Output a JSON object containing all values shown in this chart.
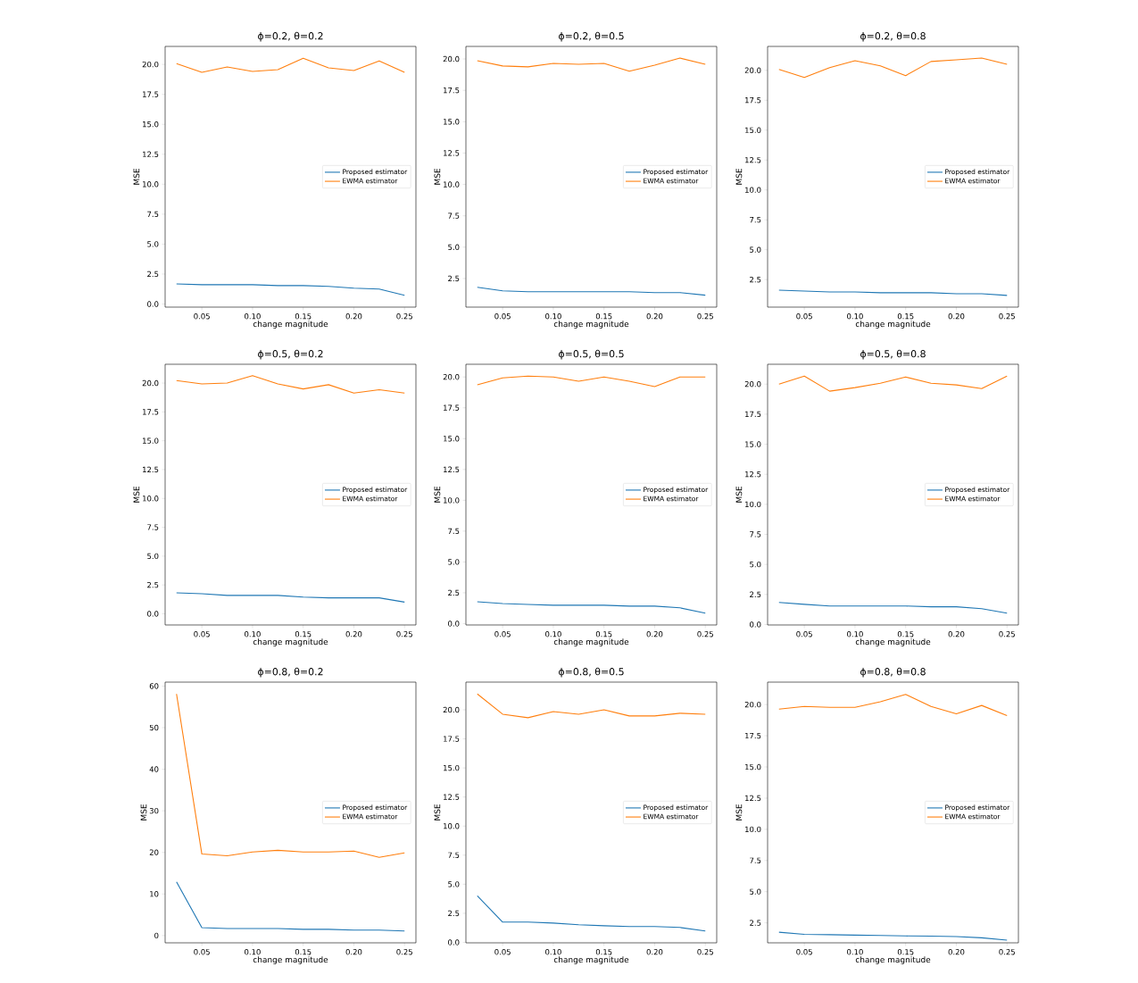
{
  "chart_data": [
    {
      "type": "line",
      "title": "ϕ=0.2, θ=0.2",
      "xlabel": "change magnitude",
      "ylabel": "MSE",
      "legend": "right",
      "x": [
        0.025,
        0.05,
        0.075,
        0.1,
        0.125,
        0.15,
        0.175,
        0.2,
        0.225,
        0.25
      ],
      "series": [
        {
          "name": "Proposed estimator",
          "color": "#1f77b4",
          "values": [
            1.68,
            1.61,
            1.61,
            1.61,
            1.54,
            1.54,
            1.47,
            1.32,
            1.25,
            0.73
          ]
        },
        {
          "name": "EWMA estimator",
          "color": "#ff7f0e",
          "values": [
            20.07,
            19.34,
            19.78,
            19.41,
            19.56,
            20.51,
            19.71,
            19.49,
            20.29,
            19.34
          ]
        }
      ],
      "xlim": [
        0.01375,
        0.26125
      ],
      "ylim": [
        -0.26,
        21.5
      ],
      "xticks": [
        {
          "value": 0.05,
          "label": "0.05"
        },
        {
          "value": 0.1,
          "label": "0.10"
        },
        {
          "value": 0.15,
          "label": "0.15"
        },
        {
          "value": 0.2,
          "label": "0.20"
        },
        {
          "value": 0.25,
          "label": "0.25"
        }
      ],
      "yticks": [
        {
          "value": 0,
          "label": "0.0"
        },
        {
          "value": 2.5,
          "label": "2.5"
        },
        {
          "value": 5,
          "label": "5.0"
        },
        {
          "value": 7.5,
          "label": "7.5"
        },
        {
          "value": 10,
          "label": "10.0"
        },
        {
          "value": 12.5,
          "label": "12.5"
        },
        {
          "value": 15,
          "label": "15.0"
        },
        {
          "value": 17.5,
          "label": "17.5"
        },
        {
          "value": 20,
          "label": "20.0"
        }
      ]
    },
    {
      "type": "line",
      "title": "ϕ=0.2, θ=0.5",
      "xlabel": "change magnitude",
      "ylabel": "MSE",
      "legend": "right",
      "x": [
        0.025,
        0.05,
        0.075,
        0.1,
        0.125,
        0.15,
        0.175,
        0.2,
        0.225,
        0.25
      ],
      "series": [
        {
          "name": "Proposed estimator",
          "color": "#1f77b4",
          "values": [
            1.8,
            1.52,
            1.45,
            1.45,
            1.45,
            1.45,
            1.45,
            1.38,
            1.38,
            1.17
          ]
        },
        {
          "name": "EWMA estimator",
          "color": "#ff7f0e",
          "values": [
            19.86,
            19.44,
            19.37,
            19.65,
            19.58,
            19.65,
            19.02,
            19.51,
            20.07,
            19.58
          ]
        }
      ],
      "xlim": [
        0.01375,
        0.26125
      ],
      "ylim": [
        0.22,
        21.0
      ],
      "xticks": [
        {
          "value": 0.05,
          "label": "0.05"
        },
        {
          "value": 0.1,
          "label": "0.10"
        },
        {
          "value": 0.15,
          "label": "0.15"
        },
        {
          "value": 0.2,
          "label": "0.20"
        },
        {
          "value": 0.25,
          "label": "0.25"
        }
      ],
      "yticks": [
        {
          "value": 2.5,
          "label": "2.5"
        },
        {
          "value": 5,
          "label": "5.0"
        },
        {
          "value": 7.5,
          "label": "7.5"
        },
        {
          "value": 10,
          "label": "10.0"
        },
        {
          "value": 12.5,
          "label": "12.5"
        },
        {
          "value": 15,
          "label": "15.0"
        },
        {
          "value": 17.5,
          "label": "17.5"
        },
        {
          "value": 20,
          "label": "20.0"
        }
      ]
    },
    {
      "type": "line",
      "title": "ϕ=0.2, θ=0.8",
      "xlabel": "change magnitude",
      "ylabel": "MSE",
      "legend": "right",
      "x": [
        0.025,
        0.05,
        0.075,
        0.1,
        0.125,
        0.15,
        0.175,
        0.2,
        0.225,
        0.25
      ],
      "series": [
        {
          "name": "Proposed estimator",
          "color": "#1f77b4",
          "values": [
            1.62,
            1.54,
            1.47,
            1.47,
            1.4,
            1.4,
            1.4,
            1.32,
            1.32,
            1.18
          ]
        },
        {
          "name": "EWMA estimator",
          "color": "#ff7f0e",
          "values": [
            20.07,
            19.41,
            20.22,
            20.81,
            20.37,
            19.56,
            20.74,
            20.88,
            21.03,
            20.51
          ]
        }
      ],
      "xlim": [
        0.01375,
        0.26125
      ],
      "ylim": [
        0.2,
        22.0
      ],
      "xticks": [
        {
          "value": 0.05,
          "label": "0.05"
        },
        {
          "value": 0.1,
          "label": "0.10"
        },
        {
          "value": 0.15,
          "label": "0.15"
        },
        {
          "value": 0.2,
          "label": "0.20"
        },
        {
          "value": 0.25,
          "label": "0.25"
        }
      ],
      "yticks": [
        {
          "value": 2.5,
          "label": "2.5"
        },
        {
          "value": 5,
          "label": "5.0"
        },
        {
          "value": 7.5,
          "label": "7.5"
        },
        {
          "value": 10,
          "label": "10.0"
        },
        {
          "value": 12.5,
          "label": "12.5"
        },
        {
          "value": 15,
          "label": "15.0"
        },
        {
          "value": 17.5,
          "label": "17.5"
        },
        {
          "value": 20,
          "label": "20.0"
        }
      ]
    },
    {
      "type": "line",
      "title": "ϕ=0.5, θ=0.2",
      "xlabel": "change magnitude",
      "ylabel": "MSE",
      "legend": "right",
      "x": [
        0.025,
        0.05,
        0.075,
        0.1,
        0.125,
        0.15,
        0.175,
        0.2,
        0.225,
        0.25
      ],
      "series": [
        {
          "name": "Proposed estimator",
          "color": "#1f77b4",
          "values": [
            1.81,
            1.74,
            1.59,
            1.59,
            1.59,
            1.45,
            1.38,
            1.38,
            1.38,
            1.01
          ]
        },
        {
          "name": "EWMA estimator",
          "color": "#ff7f0e",
          "values": [
            20.22,
            19.93,
            20.0,
            20.65,
            19.93,
            19.49,
            19.86,
            19.13,
            19.42,
            19.13
          ]
        }
      ],
      "xlim": [
        0.01375,
        0.26125
      ],
      "ylim": [
        -0.97,
        21.63
      ],
      "xticks": [
        {
          "value": 0.05,
          "label": "0.05"
        },
        {
          "value": 0.1,
          "label": "0.10"
        },
        {
          "value": 0.15,
          "label": "0.15"
        },
        {
          "value": 0.2,
          "label": "0.20"
        },
        {
          "value": 0.25,
          "label": "0.25"
        }
      ],
      "yticks": [
        {
          "value": 0,
          "label": "0.0"
        },
        {
          "value": 2.5,
          "label": "2.5"
        },
        {
          "value": 5,
          "label": "5.0"
        },
        {
          "value": 7.5,
          "label": "7.5"
        },
        {
          "value": 10,
          "label": "10.0"
        },
        {
          "value": 12.5,
          "label": "12.5"
        },
        {
          "value": 15,
          "label": "15.0"
        },
        {
          "value": 17.5,
          "label": "17.5"
        },
        {
          "value": 20,
          "label": "20.0"
        }
      ]
    },
    {
      "type": "line",
      "title": "ϕ=0.5, θ=0.5",
      "xlabel": "change magnitude",
      "ylabel": "MSE",
      "legend": "right",
      "x": [
        0.025,
        0.05,
        0.075,
        0.1,
        0.125,
        0.15,
        0.175,
        0.2,
        0.225,
        0.25
      ],
      "series": [
        {
          "name": "Proposed estimator",
          "color": "#1f77b4",
          "values": [
            1.77,
            1.63,
            1.56,
            1.49,
            1.49,
            1.49,
            1.42,
            1.42,
            1.28,
            0.85
          ]
        },
        {
          "name": "EWMA estimator",
          "color": "#ff7f0e",
          "values": [
            19.36,
            19.93,
            20.07,
            20.0,
            19.65,
            20.0,
            19.65,
            19.22,
            20.0,
            20.0
          ]
        }
      ],
      "xlim": [
        0.01375,
        0.26125
      ],
      "ylim": [
        -0.11,
        21.03
      ],
      "xticks": [
        {
          "value": 0.05,
          "label": "0.05"
        },
        {
          "value": 0.1,
          "label": "0.10"
        },
        {
          "value": 0.15,
          "label": "0.15"
        },
        {
          "value": 0.2,
          "label": "0.20"
        },
        {
          "value": 0.25,
          "label": "0.25"
        }
      ],
      "yticks": [
        {
          "value": 0,
          "label": "0.0"
        },
        {
          "value": 2.5,
          "label": "2.5"
        },
        {
          "value": 5,
          "label": "5.0"
        },
        {
          "value": 7.5,
          "label": "7.5"
        },
        {
          "value": 10,
          "label": "10.0"
        },
        {
          "value": 12.5,
          "label": "12.5"
        },
        {
          "value": 15,
          "label": "15.0"
        },
        {
          "value": 17.5,
          "label": "17.5"
        },
        {
          "value": 20,
          "label": "20.0"
        }
      ]
    },
    {
      "type": "line",
      "title": "ϕ=0.5, θ=0.8",
      "xlabel": "change magnitude",
      "ylabel": "MSE",
      "legend": "right",
      "x": [
        0.025,
        0.05,
        0.075,
        0.1,
        0.125,
        0.15,
        0.175,
        0.2,
        0.225,
        0.25
      ],
      "series": [
        {
          "name": "Proposed estimator",
          "color": "#1f77b4",
          "values": [
            1.83,
            1.68,
            1.54,
            1.54,
            1.54,
            1.54,
            1.47,
            1.47,
            1.32,
            0.95
          ]
        },
        {
          "name": "EWMA estimator",
          "color": "#ff7f0e",
          "values": [
            20.0,
            20.66,
            19.41,
            19.71,
            20.07,
            20.59,
            20.07,
            19.93,
            19.63,
            20.66
          ]
        }
      ],
      "xlim": [
        0.01375,
        0.26125
      ],
      "ylim": [
        -0.04,
        21.65
      ],
      "xticks": [
        {
          "value": 0.05,
          "label": "0.05"
        },
        {
          "value": 0.1,
          "label": "0.10"
        },
        {
          "value": 0.15,
          "label": "0.15"
        },
        {
          "value": 0.2,
          "label": "0.20"
        },
        {
          "value": 0.25,
          "label": "0.25"
        }
      ],
      "yticks": [
        {
          "value": 0,
          "label": "0.0"
        },
        {
          "value": 2.5,
          "label": "2.5"
        },
        {
          "value": 5,
          "label": "5.0"
        },
        {
          "value": 7.5,
          "label": "7.5"
        },
        {
          "value": 10,
          "label": "10.0"
        },
        {
          "value": 12.5,
          "label": "12.5"
        },
        {
          "value": 15,
          "label": "15.0"
        },
        {
          "value": 17.5,
          "label": "17.5"
        },
        {
          "value": 20,
          "label": "20.0"
        }
      ]
    },
    {
      "type": "line",
      "title": "ϕ=0.8, θ=0.2",
      "xlabel": "change magnitude",
      "ylabel": "MSE",
      "legend": "right",
      "x": [
        0.025,
        0.05,
        0.075,
        0.1,
        0.125,
        0.15,
        0.175,
        0.2,
        0.225,
        0.25
      ],
      "series": [
        {
          "name": "Proposed estimator",
          "color": "#1f77b4",
          "values": [
            12.9,
            1.9,
            1.7,
            1.7,
            1.7,
            1.5,
            1.5,
            1.3,
            1.3,
            1.1
          ]
        },
        {
          "name": "EWMA estimator",
          "color": "#ff7f0e",
          "values": [
            58.1,
            19.6,
            19.2,
            20.1,
            20.5,
            20.1,
            20.1,
            20.3,
            18.8,
            19.9
          ]
        }
      ],
      "xlim": [
        0.01375,
        0.26125
      ],
      "ylim": [
        -1.75,
        60.95
      ],
      "xticks": [
        {
          "value": 0.05,
          "label": "0.05"
        },
        {
          "value": 0.1,
          "label": "0.10"
        },
        {
          "value": 0.15,
          "label": "0.15"
        },
        {
          "value": 0.2,
          "label": "0.20"
        },
        {
          "value": 0.25,
          "label": "0.25"
        }
      ],
      "yticks": [
        0,
        10,
        20,
        30,
        40,
        50,
        60
      ]
    },
    {
      "type": "line",
      "title": "ϕ=0.8, θ=0.5",
      "xlabel": "change magnitude",
      "ylabel": "MSE",
      "legend": "right",
      "x": [
        0.025,
        0.05,
        0.075,
        0.1,
        0.125,
        0.15,
        0.175,
        0.2,
        0.225,
        0.25
      ],
      "series": [
        {
          "name": "Proposed estimator",
          "color": "#1f77b4",
          "values": [
            4.0,
            1.74,
            1.74,
            1.66,
            1.51,
            1.43,
            1.36,
            1.36,
            1.28,
            0.98
          ]
        },
        {
          "name": "EWMA estimator",
          "color": "#ff7f0e",
          "values": [
            21.36,
            19.62,
            19.32,
            19.85,
            19.62,
            20.0,
            19.47,
            19.47,
            19.7,
            19.62
          ]
        }
      ],
      "xlim": [
        0.01375,
        0.26125
      ],
      "ylim": [
        -0.04,
        22.38
      ],
      "xticks": [
        {
          "value": 0.05,
          "label": "0.05"
        },
        {
          "value": 0.1,
          "label": "0.10"
        },
        {
          "value": 0.15,
          "label": "0.15"
        },
        {
          "value": 0.2,
          "label": "0.20"
        },
        {
          "value": 0.25,
          "label": "0.25"
        }
      ],
      "yticks": [
        {
          "value": 0,
          "label": "0.0"
        },
        {
          "value": 2.5,
          "label": "2.5"
        },
        {
          "value": 5,
          "label": "5.0"
        },
        {
          "value": 7.5,
          "label": "7.5"
        },
        {
          "value": 10,
          "label": "10.0"
        },
        {
          "value": 12.5,
          "label": "12.5"
        },
        {
          "value": 15,
          "label": "15.0"
        },
        {
          "value": 17.5,
          "label": "17.5"
        },
        {
          "value": 20,
          "label": "20.0"
        }
      ]
    },
    {
      "type": "line",
      "title": "ϕ=0.8, θ=0.8",
      "xlabel": "change magnitude",
      "ylabel": "MSE",
      "legend": "right",
      "x": [
        0.025,
        0.05,
        0.075,
        0.1,
        0.125,
        0.15,
        0.175,
        0.2,
        0.225,
        0.25
      ],
      "series": [
        {
          "name": "Proposed estimator",
          "color": "#1f77b4",
          "values": [
            1.75,
            1.58,
            1.55,
            1.52,
            1.49,
            1.45,
            1.44,
            1.4,
            1.3,
            1.12
          ]
        },
        {
          "name": "EWMA estimator",
          "color": "#ff7f0e",
          "values": [
            19.63,
            19.85,
            19.78,
            19.78,
            20.22,
            20.81,
            19.85,
            19.26,
            19.93,
            19.11
          ]
        }
      ],
      "xlim": [
        0.01375,
        0.26125
      ],
      "ylim": [
        0.9,
        21.8
      ],
      "xticks": [
        {
          "value": 0.05,
          "label": "0.05"
        },
        {
          "value": 0.1,
          "label": "0.10"
        },
        {
          "value": 0.15,
          "label": "0.15"
        },
        {
          "value": 0.2,
          "label": "0.20"
        },
        {
          "value": 0.25,
          "label": "0.25"
        }
      ],
      "yticks": [
        {
          "value": 2.5,
          "label": "2.5"
        },
        {
          "value": 5,
          "label": "5.0"
        },
        {
          "value": 7.5,
          "label": "7.5"
        },
        {
          "value": 10,
          "label": "10.0"
        },
        {
          "value": 12.5,
          "label": "12.5"
        },
        {
          "value": 15,
          "label": "15.0"
        },
        {
          "value": 17.5,
          "label": "17.5"
        },
        {
          "value": 20,
          "label": "20.0"
        }
      ]
    }
  ]
}
